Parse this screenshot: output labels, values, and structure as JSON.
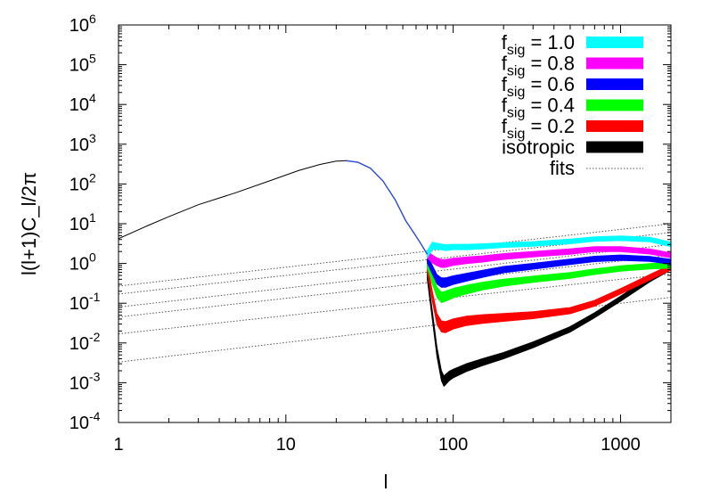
{
  "chart_data": {
    "type": "line",
    "xlabel": "l",
    "ylabel": "l(l+1)C_l/2π",
    "xscale": "log",
    "yscale": "log",
    "xlim": [
      1,
      2000
    ],
    "ylim": [
      0.0001,
      1000000
    ],
    "grid": false,
    "legend_position": "top-right",
    "x_ticks": [
      {
        "value": 1,
        "label": "1"
      },
      {
        "value": 10,
        "label": "10"
      },
      {
        "value": 100,
        "label": "100"
      },
      {
        "value": 1000,
        "label": "1000"
      }
    ],
    "y_ticks": [
      {
        "value": 0.0001,
        "base": "10",
        "exp": "-4"
      },
      {
        "value": 0.001,
        "base": "10",
        "exp": "-3"
      },
      {
        "value": 0.01,
        "base": "10",
        "exp": "-2"
      },
      {
        "value": 0.1,
        "base": "10",
        "exp": "-1"
      },
      {
        "value": 1,
        "base": "10",
        "exp": "0"
      },
      {
        "value": 10,
        "base": "10",
        "exp": "1"
      },
      {
        "value": 100,
        "base": "10",
        "exp": "2"
      },
      {
        "value": 1000,
        "base": "10",
        "exp": "3"
      },
      {
        "value": 10000,
        "base": "10",
        "exp": "4"
      },
      {
        "value": 100000,
        "base": "10",
        "exp": "5"
      },
      {
        "value": 1000000,
        "base": "10",
        "exp": "6"
      }
    ],
    "common_curve": {
      "x": [
        1,
        1.5,
        2,
        3,
        5,
        8,
        12,
        16,
        20,
        23,
        27,
        32,
        38,
        45,
        52,
        58,
        63,
        67,
        70
      ],
      "y": [
        4.2,
        9,
        15,
        30,
        60,
        120,
        220,
        310,
        375,
        385,
        350,
        250,
        120,
        40,
        12,
        6,
        3.5,
        2.3,
        1.7
      ]
    },
    "series": [
      {
        "legend_main": "f",
        "legend_sub": "sig",
        "legend_value": " = 1.0",
        "color": "#00ffff",
        "x": [
          70,
          75,
          80,
          85,
          90,
          100,
          120,
          150,
          200,
          300,
          500,
          700,
          1000,
          1500,
          2000
        ],
        "y": [
          1.7,
          2.8,
          2.7,
          2.6,
          2.5,
          2.6,
          2.6,
          2.7,
          2.9,
          3.1,
          3.6,
          4.1,
          4.3,
          4.0,
          3.0
        ],
        "width": [
          0.18,
          0.18,
          0.16,
          0.15,
          0.15,
          0.14,
          0.14,
          0.13,
          0.12,
          0.12,
          0.12,
          0.12,
          0.12,
          0.12,
          0.12
        ]
      },
      {
        "legend_main": "f",
        "legend_sub": "sig",
        "legend_value": " = 0.8",
        "color": "#ff00ff",
        "x": [
          70,
          75,
          80,
          85,
          90,
          100,
          120,
          150,
          200,
          300,
          500,
          700,
          1000,
          1500,
          2000
        ],
        "y": [
          1.7,
          1.3,
          1.1,
          1.0,
          1.0,
          1.1,
          1.2,
          1.3,
          1.5,
          1.7,
          2.0,
          2.3,
          2.3,
          2.0,
          1.6
        ],
        "width": [
          0.18,
          0.2,
          0.2,
          0.2,
          0.2,
          0.18,
          0.17,
          0.16,
          0.15,
          0.14,
          0.14,
          0.13,
          0.13,
          0.13,
          0.13
        ]
      },
      {
        "legend_main": "f",
        "legend_sub": "sig",
        "legend_value": " = 0.6",
        "color": "#0000ff",
        "x": [
          70,
          75,
          80,
          85,
          90,
          100,
          120,
          150,
          200,
          300,
          500,
          700,
          1000,
          1500,
          2000
        ],
        "y": [
          1.3,
          0.7,
          0.4,
          0.33,
          0.33,
          0.38,
          0.45,
          0.55,
          0.7,
          0.85,
          1.1,
          1.3,
          1.4,
          1.3,
          1.1
        ],
        "width": [
          0.2,
          0.22,
          0.24,
          0.24,
          0.24,
          0.22,
          0.2,
          0.18,
          0.16,
          0.15,
          0.14,
          0.14,
          0.14,
          0.13,
          0.13
        ]
      },
      {
        "legend_main": "f",
        "legend_sub": "sig",
        "legend_value": " = 0.4",
        "color": "#00ff00",
        "x": [
          70,
          75,
          80,
          85,
          90,
          100,
          120,
          150,
          200,
          300,
          500,
          700,
          1000,
          1500,
          2000
        ],
        "y": [
          1.0,
          0.4,
          0.19,
          0.14,
          0.15,
          0.18,
          0.22,
          0.27,
          0.33,
          0.4,
          0.5,
          0.62,
          0.75,
          0.85,
          0.9
        ],
        "width": [
          0.2,
          0.24,
          0.26,
          0.26,
          0.26,
          0.24,
          0.22,
          0.2,
          0.18,
          0.16,
          0.15,
          0.14,
          0.14,
          0.14,
          0.14
        ]
      },
      {
        "legend_main": "f",
        "legend_sub": "sig",
        "legend_value": " = 0.2",
        "color": "#ff0000",
        "x": [
          70,
          75,
          80,
          85,
          90,
          100,
          120,
          150,
          200,
          300,
          500,
          700,
          1000,
          1500,
          2000
        ],
        "y": [
          0.8,
          0.15,
          0.04,
          0.026,
          0.025,
          0.03,
          0.036,
          0.04,
          0.044,
          0.05,
          0.065,
          0.1,
          0.2,
          0.45,
          0.8
        ],
        "width": [
          0.22,
          0.26,
          0.28,
          0.28,
          0.28,
          0.26,
          0.24,
          0.22,
          0.2,
          0.18,
          0.16,
          0.15,
          0.14,
          0.14,
          0.14
        ]
      },
      {
        "legend_main": "isotropic",
        "legend_sub": "",
        "legend_value": "",
        "color": "#000000",
        "x": [
          70,
          75,
          80,
          85,
          88,
          90,
          95,
          100,
          120,
          150,
          200,
          300,
          500,
          700,
          1000,
          1500,
          2000
        ],
        "y": [
          0.5,
          0.05,
          0.006,
          0.0015,
          0.0011,
          0.0012,
          0.0015,
          0.0017,
          0.0024,
          0.0033,
          0.0048,
          0.009,
          0.022,
          0.05,
          0.13,
          0.4,
          0.8
        ],
        "width": [
          0.2,
          0.24,
          0.26,
          0.26,
          0.26,
          0.26,
          0.24,
          0.22,
          0.2,
          0.18,
          0.16,
          0.15,
          0.14,
          0.13,
          0.13,
          0.13,
          0.13
        ]
      }
    ],
    "fits": {
      "legend_main": "fits",
      "color": "#555555",
      "lines": [
        {
          "x": [
            1,
            2000
          ],
          "y": [
            0.27,
            10.0
          ]
        },
        {
          "x": [
            1,
            2000
          ],
          "y": [
            0.17,
            6.0
          ]
        },
        {
          "x": [
            1,
            2000
          ],
          "y": [
            0.08,
            3.0
          ]
        },
        {
          "x": [
            1,
            2000
          ],
          "y": [
            0.045,
            1.6
          ]
        },
        {
          "x": [
            1,
            2000
          ],
          "y": [
            0.017,
            0.55
          ]
        },
        {
          "x": [
            1,
            2000
          ],
          "y": [
            0.0033,
            0.14
          ]
        }
      ]
    }
  }
}
